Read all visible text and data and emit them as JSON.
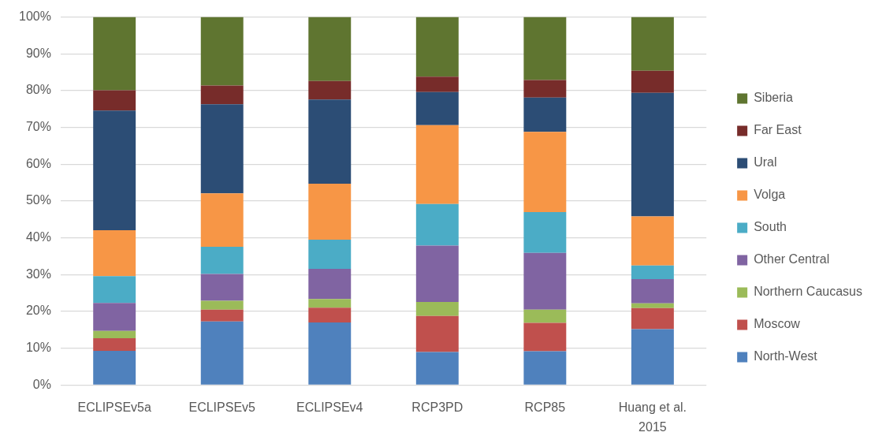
{
  "chart_data": {
    "type": "bar",
    "stacked": true,
    "categories": [
      "ECLIPSEv5a",
      "ECLIPSEv5",
      "ECLIPSEv4",
      "RCP3PD",
      "RCP85",
      "Huang et al. 2015"
    ],
    "series": [
      {
        "name": "North-West",
        "color": "#4f81bd",
        "values": [
          9.3,
          17.3,
          17.0,
          9.0,
          9.2,
          15.2
        ]
      },
      {
        "name": "Moscow",
        "color": "#c0504d",
        "values": [
          3.4,
          3.2,
          4.0,
          9.8,
          7.7,
          5.7
        ]
      },
      {
        "name": "Northern Caucasus",
        "color": "#9bbb59",
        "values": [
          2.0,
          2.4,
          2.4,
          3.8,
          3.6,
          1.3
        ]
      },
      {
        "name": "Other Central",
        "color": "#8064a2",
        "values": [
          7.6,
          7.3,
          8.2,
          15.3,
          15.4,
          6.6
        ]
      },
      {
        "name": "South",
        "color": "#4bacc6",
        "values": [
          7.3,
          7.4,
          7.9,
          11.3,
          11.1,
          3.7
        ]
      },
      {
        "name": "Volga",
        "color": "#f79646",
        "values": [
          12.5,
          14.5,
          15.2,
          21.4,
          21.8,
          13.3
        ]
      },
      {
        "name": "Ural",
        "color": "#2c4d75",
        "values": [
          32.5,
          24.2,
          22.9,
          9.0,
          9.3,
          33.6
        ]
      },
      {
        "name": "Far East",
        "color": "#772c2a",
        "values": [
          5.5,
          5.1,
          5.0,
          4.2,
          4.8,
          6.0
        ]
      },
      {
        "name": "Siberia",
        "color": "#5f7530",
        "values": [
          19.9,
          18.6,
          17.4,
          16.2,
          17.1,
          14.6
        ]
      }
    ],
    "ylim": [
      0,
      100
    ],
    "yticks": [
      {
        "value": 0,
        "label": "0%"
      },
      {
        "value": 10,
        "label": "10%"
      },
      {
        "value": 20,
        "label": "20%"
      },
      {
        "value": 30,
        "label": "30%"
      },
      {
        "value": 40,
        "label": "40%"
      },
      {
        "value": 50,
        "label": "50%"
      },
      {
        "value": 60,
        "label": "60%"
      },
      {
        "value": 70,
        "label": "70%"
      },
      {
        "value": 80,
        "label": "80%"
      },
      {
        "value": 90,
        "label": "90%"
      },
      {
        "value": 100,
        "label": "100%"
      }
    ],
    "grid": "y",
    "legend": "right"
  }
}
